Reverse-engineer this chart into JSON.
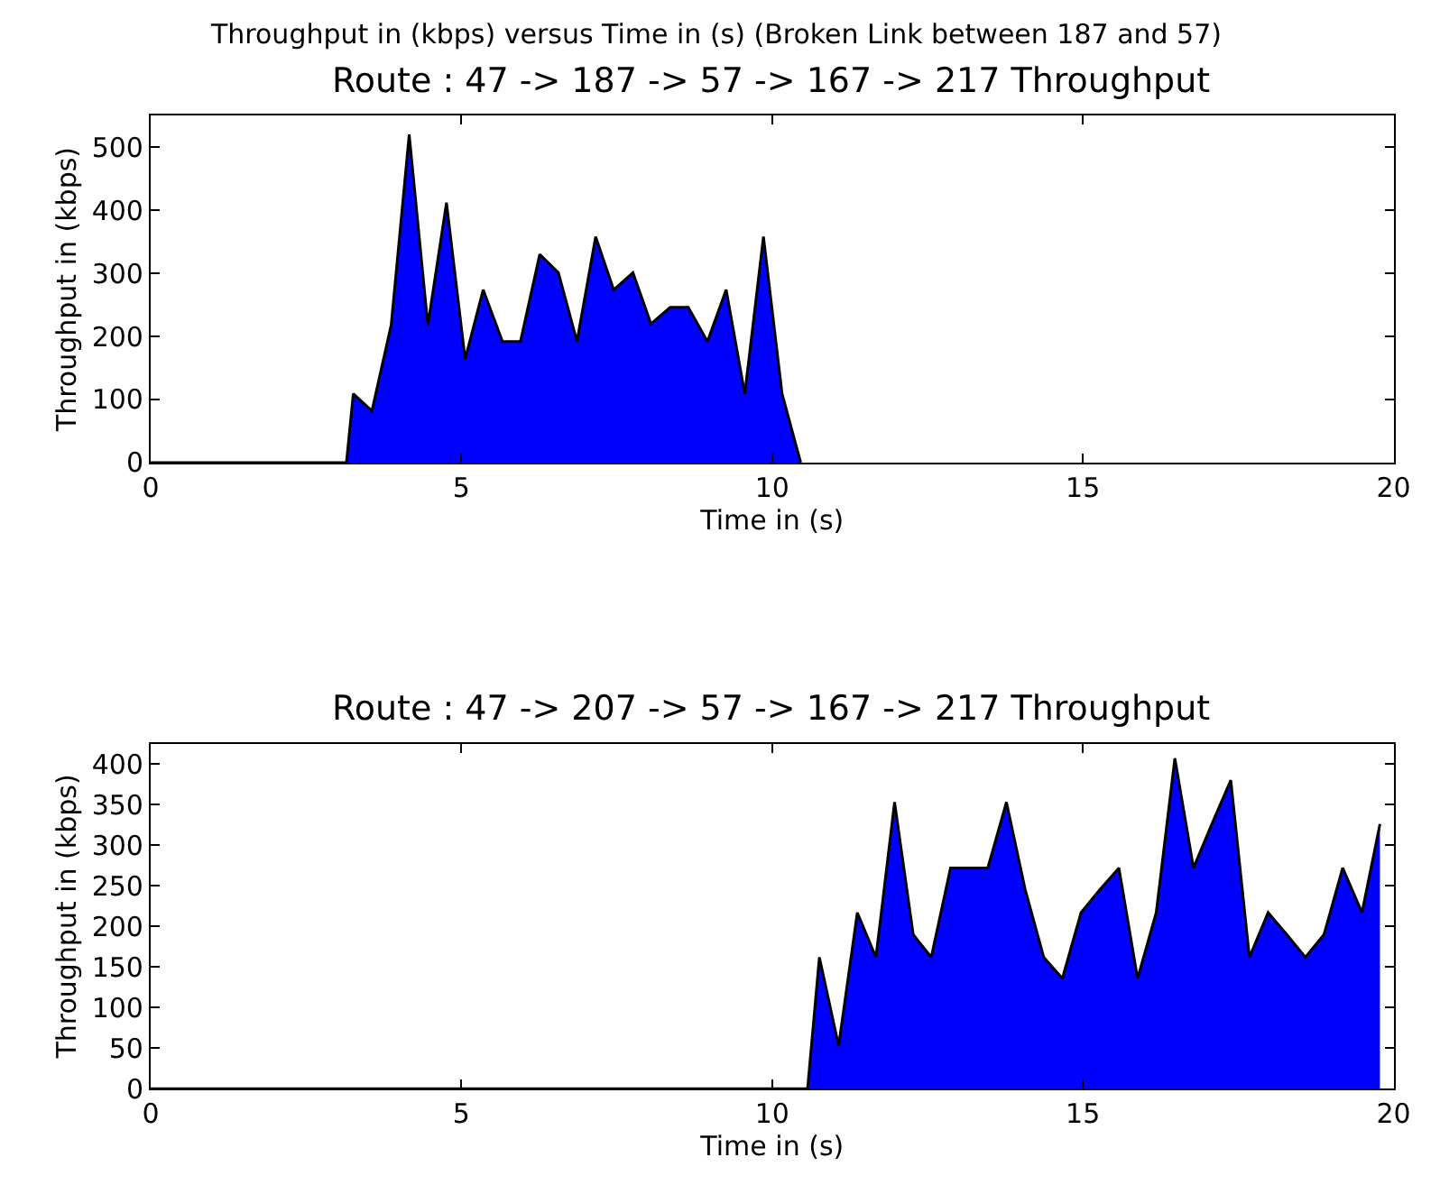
{
  "chart_data": [
    {
      "type": "area",
      "title": "Route : 47 -> 187 -> 57 -> 167 -> 217 Throughput",
      "xlabel": "Time in (s)",
      "ylabel": "Throughput in (kbps)",
      "annotations": [
        "Throughput in (kbps) versus Time in (s) (Broken Link between 187 and 57)"
      ],
      "x": [
        0,
        3.15,
        3.26,
        3.56,
        3.87,
        4.16,
        4.46,
        4.76,
        5.06,
        5.35,
        5.66,
        5.95,
        6.26,
        6.56,
        6.86,
        7.16,
        7.45,
        7.76,
        8.05,
        8.36,
        8.65,
        8.96,
        9.26,
        9.56,
        9.86,
        10.16,
        10.46
      ],
      "series": [
        {
          "color": "#0000ff",
          "values": [
            0,
            0,
            109,
            82,
            218,
            520,
            218,
            412,
            164,
            274,
            192,
            192,
            330,
            301,
            192,
            358,
            274,
            301,
            220,
            246,
            246,
            192,
            274,
            109,
            358,
            109,
            0
          ]
        }
      ],
      "xlim": [
        0,
        20
      ],
      "xticks": [
        0,
        5,
        10,
        15,
        20
      ],
      "ylim": [
        0,
        550
      ],
      "yticks": [
        0,
        100,
        200,
        300,
        400,
        500
      ]
    },
    {
      "type": "area",
      "title": "Route : 47 -> 207 -> 57 -> 167 -> 217 Throughput",
      "xlabel": "Time in (s)",
      "ylabel": "Throughput in (kbps)",
      "x": [
        0,
        10.57,
        10.76,
        11.07,
        11.37,
        11.67,
        11.97,
        12.27,
        12.56,
        12.87,
        13.17,
        13.47,
        13.77,
        14.07,
        14.37,
        14.67,
        14.97,
        15.27,
        15.58,
        15.88,
        16.18,
        16.48,
        16.78,
        17.07,
        17.38,
        17.68,
        17.98,
        18.28,
        18.58,
        18.88,
        19.18,
        19.49,
        19.78
      ],
      "series": [
        {
          "color": "#0000ff",
          "values": [
            0,
            0,
            162,
            53,
            217,
            162,
            353,
            190,
            162,
            272,
            272,
            272,
            353,
            246,
            162,
            136,
            217,
            245,
            272,
            136,
            217,
            407,
            272,
            325,
            380,
            162,
            217,
            190,
            162,
            190,
            272,
            217,
            326
          ]
        }
      ],
      "xlim": [
        0,
        20
      ],
      "xticks": [
        0,
        5,
        10,
        15,
        20
      ],
      "ylim": [
        0,
        425
      ],
      "yticks": [
        0,
        50,
        100,
        150,
        200,
        250,
        300,
        350,
        400
      ]
    }
  ]
}
